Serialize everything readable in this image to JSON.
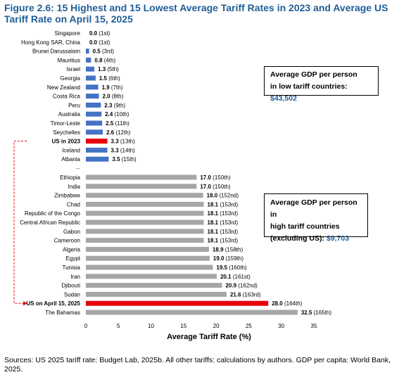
{
  "figure_title": "Figure 2.6: 15 Highest and 15 Lowest Average Tariff Rates in 2023 and Average US Tariff Rate on April 15, 2025",
  "source_note": "Sources: US 2025 tariff rate: Budget Lab, 2025b. All other tariffs: calculations by authors. GDP per capita: World Bank, 2025.",
  "callout_low": {
    "line1": "Average GDP per person",
    "line2": "in low tariff countries:",
    "amount": "$43,502"
  },
  "callout_high": {
    "line1": "Average GDP per person in",
    "line2": "high tariff countries",
    "line3": "(excluding US):",
    "amount": "$9,703"
  },
  "colors": {
    "low_bar": "#4472c4",
    "high_bar": "#a6a6a6",
    "us_bar": "#e8000b",
    "title": "#1f5e96",
    "connector": "#e8000b"
  },
  "chart_data": {
    "type": "bar",
    "orientation": "horizontal",
    "xlabel": "Average Tariff Rate (%)",
    "ylabel": "",
    "xlim": [
      0,
      35
    ],
    "xticks": [
      "0",
      "5",
      "10",
      "15",
      "20",
      "25",
      "30",
      "35"
    ],
    "grid": false,
    "separator_label": "...",
    "rows": [
      {
        "category": "Singapore",
        "value": 0.0,
        "value_label": "0.0",
        "rank_label": "(1st)",
        "group": "low"
      },
      {
        "category": "Hong Kong SAR, China",
        "value": 0.0,
        "value_label": "0.0",
        "rank_label": "(1st)",
        "group": "low"
      },
      {
        "category": "Brunei Darussalam",
        "value": 0.5,
        "value_label": "0.5",
        "rank_label": "(3rd)",
        "group": "low"
      },
      {
        "category": "Mauritius",
        "value": 0.8,
        "value_label": "0.8",
        "rank_label": "(4th)",
        "group": "low"
      },
      {
        "category": "Israel",
        "value": 1.3,
        "value_label": "1.3",
        "rank_label": "(5th)",
        "group": "low"
      },
      {
        "category": "Georgia",
        "value": 1.5,
        "value_label": "1.5",
        "rank_label": "(6th)",
        "group": "low"
      },
      {
        "category": "New Zealand",
        "value": 1.9,
        "value_label": "1.9",
        "rank_label": "(7th)",
        "group": "low"
      },
      {
        "category": "Costa Rica",
        "value": 2.0,
        "value_label": "2.0",
        "rank_label": "(8th)",
        "group": "low"
      },
      {
        "category": "Peru",
        "value": 2.3,
        "value_label": "2.3",
        "rank_label": "(9th)",
        "group": "low"
      },
      {
        "category": "Australia",
        "value": 2.4,
        "value_label": "2.4",
        "rank_label": "(10th)",
        "group": "low"
      },
      {
        "category": "Timor-Leste",
        "value": 2.5,
        "value_label": "2.5",
        "rank_label": "(11th)",
        "group": "low"
      },
      {
        "category": "Seychelles",
        "value": 2.6,
        "value_label": "2.6",
        "rank_label": "(12th)",
        "group": "low"
      },
      {
        "category": "US in 2023",
        "value": 3.3,
        "value_label": "3.3",
        "rank_label": "(13th)",
        "group": "us"
      },
      {
        "category": "Iceland",
        "value": 3.3,
        "value_label": "3.3",
        "rank_label": "(14th)",
        "group": "low"
      },
      {
        "category": "Albania",
        "value": 3.5,
        "value_label": "3.5",
        "rank_label": "(15th)",
        "group": "low"
      },
      {
        "category": "Ethiopia",
        "value": 17.0,
        "value_label": "17.0",
        "rank_label": "(150th)",
        "group": "high"
      },
      {
        "category": "India",
        "value": 17.0,
        "value_label": "17.0",
        "rank_label": "(150th)",
        "group": "high"
      },
      {
        "category": "Zimbabwe",
        "value": 18.0,
        "value_label": "18.0",
        "rank_label": "(152nd)",
        "group": "high"
      },
      {
        "category": "Chad",
        "value": 18.1,
        "value_label": "18.1",
        "rank_label": "(153rd)",
        "group": "high"
      },
      {
        "category": "Republic of the Congo",
        "value": 18.1,
        "value_label": "18.1",
        "rank_label": "(153rd)",
        "group": "high"
      },
      {
        "category": "Central African Republic",
        "value": 18.1,
        "value_label": "18.1",
        "rank_label": "(153rd)",
        "group": "high"
      },
      {
        "category": "Gabon",
        "value": 18.1,
        "value_label": "18.1",
        "rank_label": "(153rd)",
        "group": "high"
      },
      {
        "category": "Cameroon",
        "value": 18.1,
        "value_label": "18.1",
        "rank_label": "(153rd)",
        "group": "high"
      },
      {
        "category": "Algeria",
        "value": 18.9,
        "value_label": "18.9",
        "rank_label": "(158th)",
        "group": "high"
      },
      {
        "category": "Egypt",
        "value": 19.0,
        "value_label": "19.0",
        "rank_label": "(159th)",
        "group": "high"
      },
      {
        "category": "Tunisia",
        "value": 19.5,
        "value_label": "19.5",
        "rank_label": "(160th)",
        "group": "high"
      },
      {
        "category": "Iran",
        "value": 20.1,
        "value_label": "20.1",
        "rank_label": "(161st)",
        "group": "high"
      },
      {
        "category": "Djibouti",
        "value": 20.9,
        "value_label": "20.9",
        "rank_label": "(162nd)",
        "group": "high"
      },
      {
        "category": "Sudan",
        "value": 21.6,
        "value_label": "21.6",
        "rank_label": "(163rd)",
        "group": "high"
      },
      {
        "category": "US on April 15, 2025",
        "value": 28.0,
        "value_label": "28.0",
        "rank_label": "(164th)",
        "group": "us"
      },
      {
        "category": "The Bahamas",
        "value": 32.5,
        "value_label": "32.5",
        "rank_label": "(165th)",
        "group": "high"
      }
    ]
  }
}
